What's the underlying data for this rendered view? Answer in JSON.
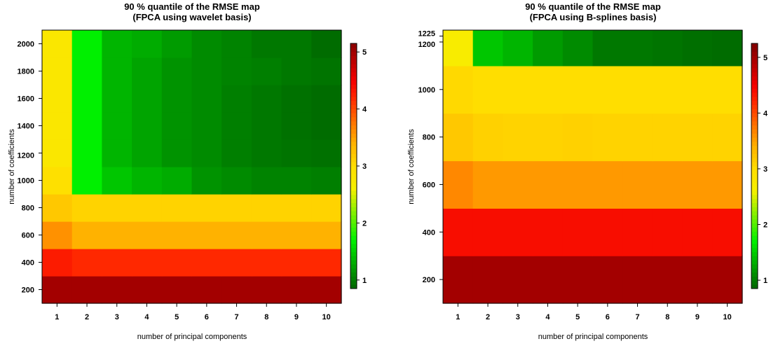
{
  "chart_data": [
    {
      "type": "heatmap",
      "title_line1": "90 % quantile of the RMSE map",
      "title_line2": "(FPCA using wavelet basis)",
      "xlabel": "number of principal components",
      "ylabel": "number of coefficients",
      "x": [
        1,
        2,
        3,
        4,
        5,
        6,
        7,
        8,
        9,
        10
      ],
      "y_centers": [
        200,
        400,
        600,
        800,
        1000,
        1200,
        1400,
        1600,
        1800,
        2000
      ],
      "y_bounds": [
        100,
        2100
      ],
      "yticks": [
        200,
        400,
        600,
        800,
        1000,
        1200,
        1400,
        1600,
        1800,
        2000
      ],
      "z": [
        [
          5.0,
          5.0,
          5.0,
          5.0,
          5.0,
          5.0,
          5.0,
          5.0,
          5.0,
          5.0
        ],
        [
          4.3,
          4.2,
          4.2,
          4.2,
          4.2,
          4.2,
          4.2,
          4.2,
          4.2,
          4.2
        ],
        [
          3.6,
          3.4,
          3.4,
          3.4,
          3.4,
          3.4,
          3.4,
          3.4,
          3.4,
          3.4
        ],
        [
          3.2,
          3.1,
          3.1,
          3.1,
          3.1,
          3.1,
          3.1,
          3.1,
          3.1,
          3.1
        ],
        [
          2.95,
          1.7,
          1.45,
          1.35,
          1.3,
          1.15,
          1.1,
          1.05,
          1.05,
          1.02
        ],
        [
          2.8,
          1.7,
          1.35,
          1.25,
          1.15,
          1.1,
          1.02,
          0.98,
          0.95,
          0.93
        ],
        [
          2.8,
          1.7,
          1.35,
          1.25,
          1.15,
          1.1,
          1.02,
          0.98,
          0.93,
          0.9
        ],
        [
          2.8,
          1.7,
          1.35,
          1.25,
          1.15,
          1.1,
          1.02,
          0.98,
          0.93,
          0.9
        ],
        [
          2.8,
          1.7,
          1.35,
          1.25,
          1.15,
          1.1,
          1.05,
          1.02,
          0.98,
          0.95
        ],
        [
          2.8,
          1.7,
          1.35,
          1.3,
          1.2,
          1.1,
          1.05,
          0.98,
          0.98,
          0.9
        ]
      ],
      "colorbar": {
        "range": [
          0.85,
          5.15
        ],
        "ticks": [
          1,
          2,
          3,
          4,
          5
        ]
      }
    },
    {
      "type": "heatmap",
      "title_line1": "90 % quantile of the RMSE map",
      "title_line2": "(FPCA using B-splines basis)",
      "xlabel": "number of principal components",
      "ylabel": "number of coefficients",
      "x": [
        1,
        2,
        3,
        4,
        5,
        6,
        7,
        8,
        9,
        10
      ],
      "y_bounds_rows": [
        [
          100,
          300
        ],
        [
          300,
          500
        ],
        [
          500,
          700
        ],
        [
          700,
          900
        ],
        [
          900,
          1100
        ],
        [
          1100,
          1250
        ]
      ],
      "yticks": [
        200,
        400,
        600,
        800,
        1000,
        1200,
        1225
      ],
      "z": [
        [
          5.0,
          5.0,
          5.0,
          5.0,
          5.0,
          5.0,
          5.0,
          5.0,
          5.0,
          5.0
        ],
        [
          4.4,
          4.4,
          4.4,
          4.4,
          4.4,
          4.4,
          4.4,
          4.4,
          4.4,
          4.4
        ],
        [
          3.65,
          3.55,
          3.55,
          3.55,
          3.55,
          3.55,
          3.55,
          3.55,
          3.55,
          3.55
        ],
        [
          3.2,
          3.12,
          3.1,
          3.1,
          3.12,
          3.1,
          3.1,
          3.1,
          3.1,
          3.1
        ],
        [
          3.05,
          3.0,
          3.0,
          3.0,
          3.0,
          3.0,
          3.0,
          3.0,
          3.0,
          3.0
        ],
        [
          2.7,
          1.45,
          1.35,
          1.2,
          1.1,
          0.98,
          0.98,
          0.95,
          0.92,
          0.9
        ]
      ],
      "colorbar": {
        "range": [
          0.85,
          5.25
        ],
        "ticks": [
          1,
          2,
          3,
          4,
          5
        ]
      }
    }
  ]
}
